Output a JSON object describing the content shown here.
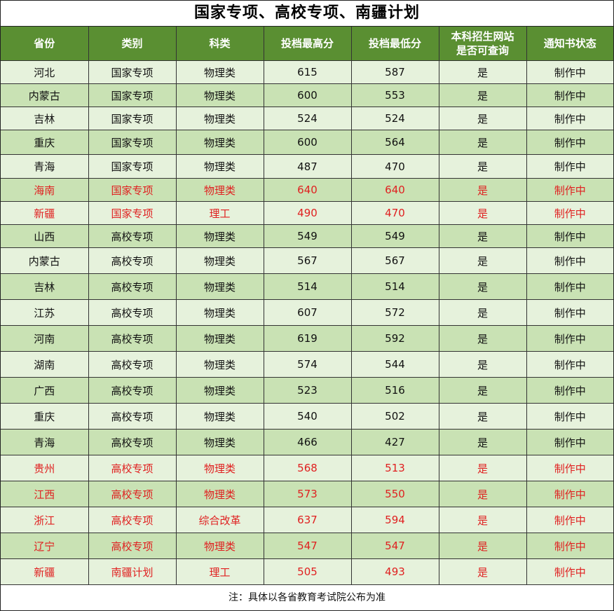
{
  "title": "国家专项、高校专项、南疆计划",
  "headers": [
    "省份",
    "类别",
    "科类",
    "投档最高分",
    "投档最低分",
    "本科招生网站\n是否可查询",
    "通知书状态"
  ],
  "header_lines": [
    [
      "省份"
    ],
    [
      "类别"
    ],
    [
      "科类"
    ],
    [
      "投档最高分"
    ],
    [
      "投档最低分"
    ],
    [
      "本科招生网站",
      "是否可查询"
    ],
    [
      "通知书状态"
    ]
  ],
  "colors": {
    "header_bg": "#5a8f32",
    "row_light": "#e6f2dc",
    "row_dark": "#c9e2b4",
    "highlight_text": "#e02020"
  },
  "rows": [
    {
      "province": "河北",
      "category": "国家专项",
      "subject": "物理类",
      "max": "615",
      "min": "587",
      "queryable": "是",
      "status": "制作中",
      "highlight": false
    },
    {
      "province": "内蒙古",
      "category": "国家专项",
      "subject": "物理类",
      "max": "600",
      "min": "553",
      "queryable": "是",
      "status": "制作中",
      "highlight": false
    },
    {
      "province": "吉林",
      "category": "国家专项",
      "subject": "物理类",
      "max": "524",
      "min": "524",
      "queryable": "是",
      "status": "制作中",
      "highlight": false
    },
    {
      "province": "重庆",
      "category": "国家专项",
      "subject": "物理类",
      "max": "600",
      "min": "564",
      "queryable": "是",
      "status": "制作中",
      "highlight": false
    },
    {
      "province": "青海",
      "category": "国家专项",
      "subject": "物理类",
      "max": "487",
      "min": "470",
      "queryable": "是",
      "status": "制作中",
      "highlight": false
    },
    {
      "province": "海南",
      "category": "国家专项",
      "subject": "物理类",
      "max": "640",
      "min": "640",
      "queryable": "是",
      "status": "制作中",
      "highlight": true
    },
    {
      "province": "新疆",
      "category": "国家专项",
      "subject": "理工",
      "max": "490",
      "min": "470",
      "queryable": "是",
      "status": "制作中",
      "highlight": true
    },
    {
      "province": "山西",
      "category": "高校专项",
      "subject": "物理类",
      "max": "549",
      "min": "549",
      "queryable": "是",
      "status": "制作中",
      "highlight": false
    },
    {
      "province": "内蒙古",
      "category": "高校专项",
      "subject": "物理类",
      "max": "567",
      "min": "567",
      "queryable": "是",
      "status": "制作中",
      "highlight": false
    },
    {
      "province": "吉林",
      "category": "高校专项",
      "subject": "物理类",
      "max": "514",
      "min": "514",
      "queryable": "是",
      "status": "制作中",
      "highlight": false
    },
    {
      "province": "江苏",
      "category": "高校专项",
      "subject": "物理类",
      "max": "607",
      "min": "572",
      "queryable": "是",
      "status": "制作中",
      "highlight": false
    },
    {
      "province": "河南",
      "category": "高校专项",
      "subject": "物理类",
      "max": "619",
      "min": "592",
      "queryable": "是",
      "status": "制作中",
      "highlight": false
    },
    {
      "province": "湖南",
      "category": "高校专项",
      "subject": "物理类",
      "max": "574",
      "min": "544",
      "queryable": "是",
      "status": "制作中",
      "highlight": false
    },
    {
      "province": "广西",
      "category": "高校专项",
      "subject": "物理类",
      "max": "523",
      "min": "516",
      "queryable": "是",
      "status": "制作中",
      "highlight": false
    },
    {
      "province": "重庆",
      "category": "高校专项",
      "subject": "物理类",
      "max": "540",
      "min": "502",
      "queryable": "是",
      "status": "制作中",
      "highlight": false
    },
    {
      "province": "青海",
      "category": "高校专项",
      "subject": "物理类",
      "max": "466",
      "min": "427",
      "queryable": "是",
      "status": "制作中",
      "highlight": false
    },
    {
      "province": "贵州",
      "category": "高校专项",
      "subject": "物理类",
      "max": "568",
      "min": "513",
      "queryable": "是",
      "status": "制作中",
      "highlight": true
    },
    {
      "province": "江西",
      "category": "高校专项",
      "subject": "物理类",
      "max": "573",
      "min": "550",
      "queryable": "是",
      "status": "制作中",
      "highlight": true
    },
    {
      "province": "浙江",
      "category": "高校专项",
      "subject": "综合改革",
      "max": "637",
      "min": "594",
      "queryable": "是",
      "status": "制作中",
      "highlight": true
    },
    {
      "province": "辽宁",
      "category": "高校专项",
      "subject": "物理类",
      "max": "547",
      "min": "547",
      "queryable": "是",
      "status": "制作中",
      "highlight": true
    },
    {
      "province": "新疆",
      "category": "南疆计划",
      "subject": "理工",
      "max": "505",
      "min": "493",
      "queryable": "是",
      "status": "制作中",
      "highlight": true
    }
  ],
  "note": "注：具体以各省教育考试院公布为准"
}
